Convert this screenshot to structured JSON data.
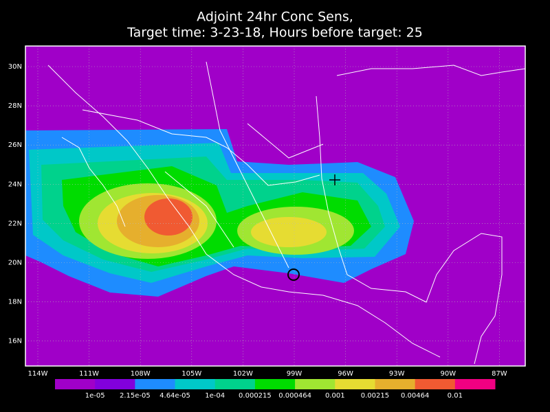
{
  "title": [
    "Adjoint 24hr Conc Sens,",
    "Target time: 3-23-18, Hours before target: 25"
  ],
  "map": {
    "lat_labels": [
      "30N",
      "28N",
      "26N",
      "24N",
      "22N",
      "20N",
      "18N",
      "16N"
    ],
    "lon_labels": [
      "114W",
      "111W",
      "108W",
      "105W",
      "102W",
      "99W",
      "96W",
      "93W",
      "90W",
      "87W"
    ]
  },
  "colorbar": {
    "colors": [
      "#a000c8",
      "#8200dc",
      "#1e8cff",
      "#00c8c8",
      "#00d28c",
      "#00dc00",
      "#a0e632",
      "#e6dc32",
      "#e6af2d",
      "#f05a32",
      "#f00082"
    ],
    "labels": [
      "1e-05",
      "2.15e-05",
      "4.64e-05",
      "1e-04",
      "0.000215",
      "0.000464",
      "0.001",
      "0.00215",
      "0.00464",
      "0.01"
    ]
  }
}
